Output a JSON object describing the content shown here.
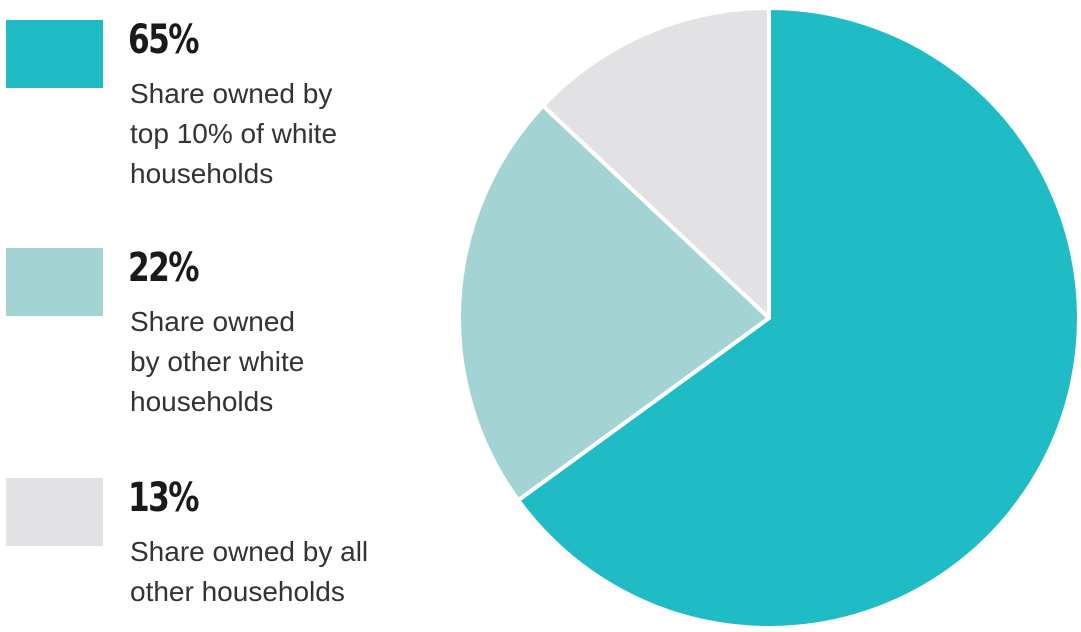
{
  "colors": {
    "top10_white": "#1FBCC6",
    "other_white": "#A3D3D2",
    "all_other": "#E2E2E4",
    "separator": "#ffffff"
  },
  "legend": [
    {
      "percent": "65%",
      "label": "Share owned by\ntop 10% of white\nhouseholds"
    },
    {
      "percent": "22%",
      "label": "Share owned\nby other white\nhouseholds"
    },
    {
      "percent": "13%",
      "label": "Share owned by all\nother households"
    }
  ],
  "chart_data": {
    "type": "pie",
    "title": "",
    "slices": [
      {
        "name": "Share owned by top 10% of white households",
        "value": 65,
        "color": "#1FBCC6"
      },
      {
        "name": "Share owned by other white households",
        "value": 22,
        "color": "#A3D3D2"
      },
      {
        "name": "Share owned by all other households",
        "value": 13,
        "color": "#E2E2E4"
      }
    ],
    "start_angle": "12 o'clock",
    "direction": "clockwise",
    "legend_position": "left"
  }
}
